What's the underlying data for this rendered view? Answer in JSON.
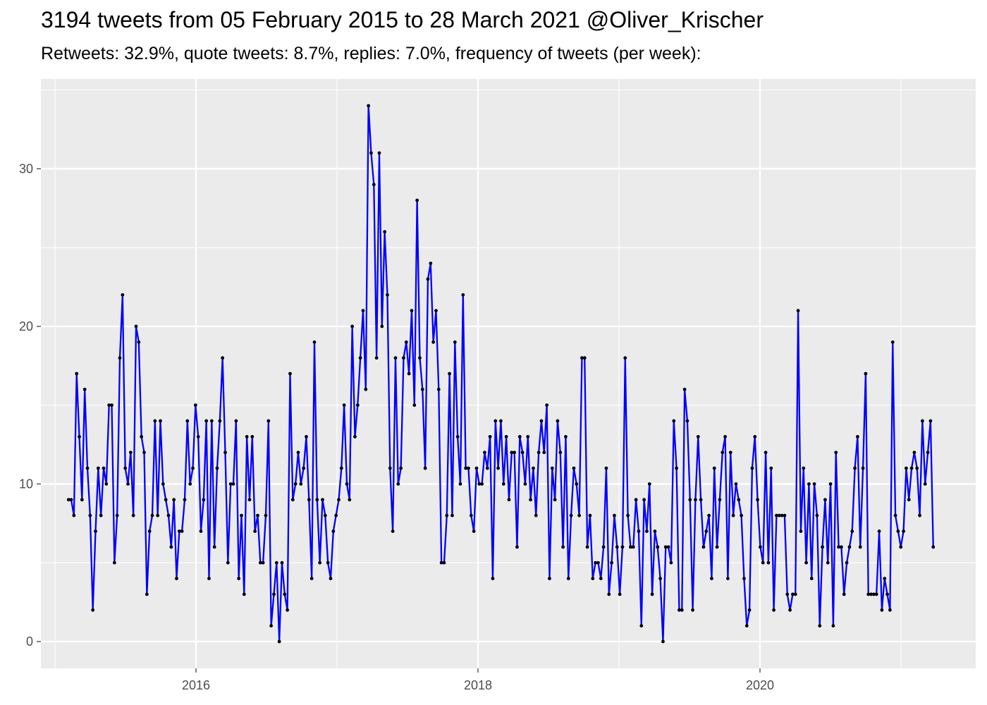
{
  "title": "3194 tweets from 05 February 2015 to 28 March 2021 @Oliver_Krischer",
  "subtitle": "Retweets: 32.9%, quote tweets: 8.7%, replies: 7.0%, frequency of tweets (per week):",
  "chart_data": {
    "type": "line",
    "title": "3194 tweets from 05 February 2015 to 28 March 2021 @Oliver_Krischer",
    "subtitle": "Retweets: 32.9%, quote tweets: 8.7%, replies: 7.0%, frequency of tweets (per week):",
    "xlabel": "",
    "ylabel": "",
    "x_start": "2015-02-05",
    "x_interval_days": 7,
    "xlim": [
      2014.9,
      2021.53
    ],
    "ylim": [
      -1.7,
      35.7
    ],
    "x_ticks": [
      2016,
      2018,
      2020
    ],
    "x_tick_labels": [
      "2016",
      "2018",
      "2020"
    ],
    "y_ticks": [
      0,
      10,
      20,
      30
    ],
    "y_tick_labels": [
      "0",
      "10",
      "20",
      "30"
    ],
    "grid": true,
    "legend": "none",
    "line_color": "#0000ff",
    "point_color": "#000000",
    "panel_background": "#ebebeb",
    "grid_color": "#ffffff",
    "series": [
      {
        "values": [
          9,
          9,
          8,
          17,
          13,
          9,
          16,
          11,
          8,
          2,
          7,
          11,
          8,
          11,
          10,
          15,
          15,
          5,
          8,
          18,
          22,
          11,
          10,
          12,
          8,
          20,
          19,
          13,
          12,
          3,
          7,
          8,
          14,
          8,
          14,
          10,
          9,
          8,
          6,
          9,
          4,
          7,
          7,
          9,
          14,
          10,
          11,
          15,
          13,
          7,
          9,
          14,
          4,
          14,
          6,
          11,
          14,
          18,
          12,
          5,
          10,
          10,
          14,
          4,
          8,
          3,
          13,
          9,
          13,
          7,
          8,
          5,
          5,
          8,
          14,
          1,
          3,
          5,
          0,
          5,
          3,
          2,
          17,
          9,
          10,
          12,
          10,
          11,
          13,
          9,
          4,
          19,
          9,
          5,
          9,
          8,
          5,
          4,
          7,
          8,
          9,
          11,
          15,
          10,
          9,
          20,
          13,
          15,
          18,
          21,
          16,
          34,
          31,
          29,
          18,
          31,
          20,
          26,
          22,
          11,
          7,
          18,
          10,
          11,
          18,
          19,
          17,
          21,
          15,
          28,
          18,
          16,
          11,
          23,
          24,
          19,
          21,
          16,
          5,
          5,
          8,
          17,
          8,
          19,
          13,
          10,
          22,
          11,
          11,
          8,
          7,
          11,
          10,
          10,
          12,
          11,
          13,
          4,
          14,
          11,
          14,
          10,
          13,
          9,
          12,
          12,
          6,
          13,
          12,
          10,
          13,
          9,
          11,
          8,
          12,
          14,
          12,
          15,
          4,
          11,
          9,
          14,
          12,
          6,
          13,
          4,
          8,
          11,
          10,
          8,
          18,
          18,
          6,
          8,
          4,
          5,
          5,
          4,
          6,
          11,
          3,
          5,
          8,
          6,
          3,
          6,
          18,
          8,
          6,
          6,
          9,
          7,
          1,
          9,
          7,
          10,
          3,
          7,
          6,
          4,
          0,
          6,
          6,
          5,
          14,
          11,
          2,
          2,
          16,
          14,
          9,
          2,
          9,
          13,
          9,
          6,
          7,
          8,
          4,
          11,
          6,
          9,
          12,
          13,
          4,
          12,
          8,
          10,
          9,
          8,
          4,
          1,
          2,
          11,
          13,
          9,
          6,
          5,
          12,
          5,
          11,
          2,
          8,
          8,
          8,
          8,
          3,
          2,
          3,
          3,
          21,
          7,
          11,
          5,
          10,
          4,
          10,
          8,
          1,
          6,
          9,
          5,
          10,
          1,
          12,
          6,
          6,
          3,
          5,
          6,
          7,
          11,
          13,
          6,
          11,
          17,
          3,
          3,
          3,
          3,
          7,
          2,
          4,
          3,
          2,
          19,
          8,
          7,
          6,
          7,
          11,
          9,
          11,
          12,
          11,
          8,
          14,
          10,
          12,
          14,
          6
        ]
      }
    ]
  }
}
